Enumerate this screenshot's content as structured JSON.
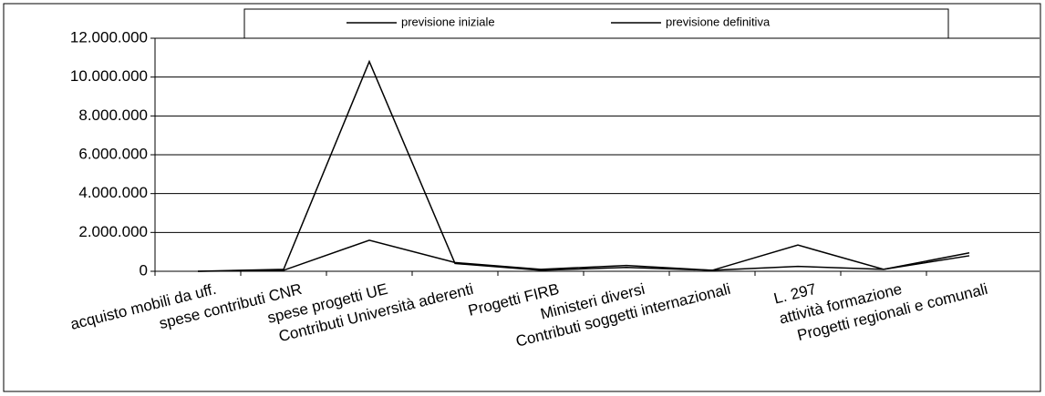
{
  "chart_data": {
    "type": "line",
    "categories": [
      "acquisto mobili da uff.",
      "spese contributi CNR",
      "spese progetti UE",
      "Contributi Università aderenti",
      "Progetti FIRB",
      "Ministeri diversi",
      "Contributi soggetti internazionali",
      "L. 297",
      "attività formazione",
      "Progetti regionali e comunali"
    ],
    "series": [
      {
        "name": "previsione iniziale",
        "color": "#000000",
        "values": [
          0,
          50000,
          1600000,
          450000,
          100000,
          300000,
          50000,
          250000,
          100000,
          800000
        ]
      },
      {
        "name": "previsione definitiva",
        "color": "#000000",
        "values": [
          0,
          100000,
          10800000,
          400000,
          50000,
          200000,
          50000,
          1350000,
          100000,
          950000
        ]
      }
    ],
    "ylim": [
      0,
      12000000
    ],
    "yticks": [
      0,
      {
        "value": 2000000,
        "label": "2.000.000"
      },
      {
        "value": 4000000,
        "label": "4.000.000"
      },
      {
        "value": 6000000,
        "label": "6.000.000"
      },
      {
        "value": 8000000,
        "label": "8.000.000"
      },
      {
        "value": 10000000,
        "label": "10.000.000"
      },
      {
        "value": 12000000,
        "label": "12.000.000"
      }
    ],
    "grid": true,
    "legend": "top"
  }
}
